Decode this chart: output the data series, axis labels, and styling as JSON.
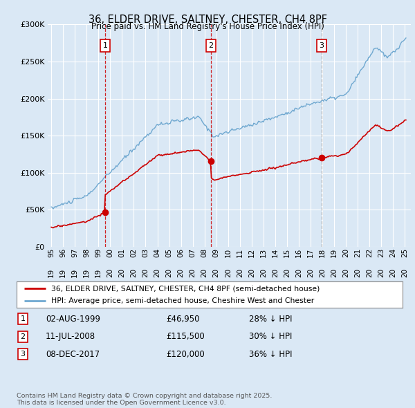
{
  "title": "36, ELDER DRIVE, SALTNEY, CHESTER, CH4 8PF",
  "subtitle": "Price paid vs. HM Land Registry's House Price Index (HPI)",
  "bg_color": "#dae8f5",
  "plot_bg_color": "#dae8f5",
  "red_line_color": "#cc0000",
  "blue_line_color": "#6fa8d0",
  "grid_color": "#ffffff",
  "purchases": [
    {
      "date_num": 1999.58,
      "price": 46950,
      "label": "1",
      "vline_color": "#cc0000"
    },
    {
      "date_num": 2008.53,
      "price": 115500,
      "label": "2",
      "vline_color": "#cc0000"
    },
    {
      "date_num": 2017.93,
      "price": 120000,
      "label": "3",
      "vline_color": "#aaaaaa"
    }
  ],
  "purchase_dates_str": [
    "02-AUG-1999",
    "11-JUL-2008",
    "08-DEC-2017"
  ],
  "purchase_prices_str": [
    "£46,950",
    "£115,500",
    "£120,000"
  ],
  "purchase_hpi_str": [
    "28% ↓ HPI",
    "30% ↓ HPI",
    "36% ↓ HPI"
  ],
  "legend_label_red": "36, ELDER DRIVE, SALTNEY, CHESTER, CH4 8PF (semi-detached house)",
  "legend_label_blue": "HPI: Average price, semi-detached house, Cheshire West and Chester",
  "footer": "Contains HM Land Registry data © Crown copyright and database right 2025.\nThis data is licensed under the Open Government Licence v3.0.",
  "ylim": [
    0,
    300000
  ],
  "yticks": [
    0,
    50000,
    100000,
    150000,
    200000,
    250000,
    300000
  ],
  "ytick_labels": [
    "£0",
    "£50K",
    "£100K",
    "£150K",
    "£200K",
    "£250K",
    "£300K"
  ],
  "xlim_start": 1994.7,
  "xlim_end": 2025.5
}
